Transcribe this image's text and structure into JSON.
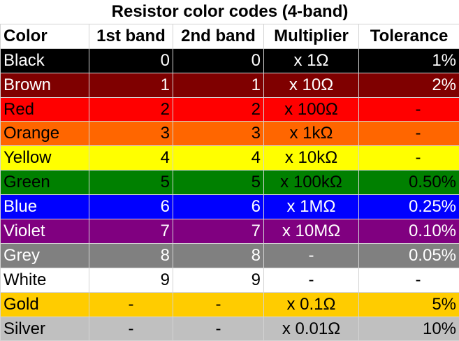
{
  "title": "Resistor color codes (4-band)",
  "headers": [
    "Color",
    "1st band",
    "2nd band",
    "Multiplier",
    "Tolerance"
  ],
  "rows": [
    {
      "color": "Black",
      "band1": "0",
      "band2": "0",
      "multiplier": "x 1Ω",
      "tolerance": "1%",
      "bg": "#000000",
      "fg": "#ffffff"
    },
    {
      "color": "Brown",
      "band1": "1",
      "band2": "1",
      "multiplier": "x 10Ω",
      "tolerance": "2%",
      "bg": "#7f0000",
      "fg": "#ffffff"
    },
    {
      "color": "Red",
      "band1": "2",
      "band2": "2",
      "multiplier": "x 100Ω",
      "tolerance": "-",
      "bg": "#ff0000",
      "fg": "#000000"
    },
    {
      "color": "Orange",
      "band1": "3",
      "band2": "3",
      "multiplier": "x 1kΩ",
      "tolerance": "-",
      "bg": "#ff6600",
      "fg": "#000000"
    },
    {
      "color": "Yellow",
      "band1": "4",
      "band2": "4",
      "multiplier": "x 10kΩ",
      "tolerance": "-",
      "bg": "#ffff00",
      "fg": "#000000"
    },
    {
      "color": "Green",
      "band1": "5",
      "band2": "5",
      "multiplier": "x 100kΩ",
      "tolerance": "0.50%",
      "bg": "#008000",
      "fg": "#000000"
    },
    {
      "color": "Blue",
      "band1": "6",
      "band2": "6",
      "multiplier": "x 1MΩ",
      "tolerance": "0.25%",
      "bg": "#0000ff",
      "fg": "#ffffff"
    },
    {
      "color": "Violet",
      "band1": "7",
      "band2": "7",
      "multiplier": "x 10MΩ",
      "tolerance": "0.10%",
      "bg": "#800080",
      "fg": "#ffffff"
    },
    {
      "color": "Grey",
      "band1": "8",
      "band2": "8",
      "multiplier": "-",
      "tolerance": "0.05%",
      "bg": "#808080",
      "fg": "#ffffff"
    },
    {
      "color": "White",
      "band1": "9",
      "band2": "9",
      "multiplier": "-",
      "tolerance": "-",
      "bg": "#ffffff",
      "fg": "#000000"
    },
    {
      "color": "Gold",
      "band1": "-",
      "band2": "-",
      "multiplier": "x 0.1Ω",
      "tolerance": "5%",
      "bg": "#ffcc00",
      "fg": "#000000"
    },
    {
      "color": "Silver",
      "band1": "-",
      "band2": "-",
      "multiplier": "x 0.01Ω",
      "tolerance": "10%",
      "bg": "#c0c0c0",
      "fg": "#000000"
    }
  ]
}
